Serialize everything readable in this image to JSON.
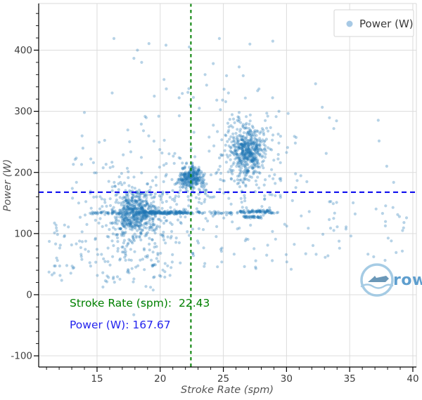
{
  "chart_data": {
    "type": "scatter",
    "title": "",
    "xlabel": "Stroke Rate (spm)",
    "ylabel": "Power (W)",
    "xlim": [
      10.38,
      40.28
    ],
    "ylim": [
      -118.3,
      476.3
    ],
    "x_ticks": [
      15,
      20,
      25,
      30,
      35,
      40
    ],
    "y_ticks": [
      -100,
      0,
      100,
      200,
      300,
      400
    ],
    "x_minor_step": 1,
    "y_minor_step": 20,
    "grid": true,
    "grid_color": "#dcdcdc",
    "legend": {
      "label": "Power (W)",
      "position": "upper right",
      "marker_color": "#a7c9e5"
    },
    "series_style": {
      "color": "#1f77b4",
      "alpha": 0.32,
      "radius": 2.1
    },
    "reference_lines": [
      {
        "orientation": "vertical",
        "value": 22.43,
        "color": "#008000",
        "dash": "4.5,4.5",
        "width": 2
      },
      {
        "orientation": "horizontal",
        "value": 167.67,
        "color": "#0000ee",
        "dash": "7,5",
        "width": 2
      }
    ],
    "annotations": [
      {
        "text": "Stroke Rate (spm):  22.43",
        "color": "#008000",
        "x": 12.83,
        "y": -19.5
      },
      {
        "text": "Power (W): 167.67",
        "color": "#2424ee",
        "x": 12.83,
        "y": -55
      }
    ],
    "seed": 42,
    "point_distribution": {
      "gaussian_clusters": [
        {
          "cx": 18.0,
          "cy": 135,
          "sx": 0.85,
          "sy": 16,
          "n": 430
        },
        {
          "cx": 18.1,
          "cy": 118,
          "sx": 2.0,
          "sy": 48,
          "n": 260
        },
        {
          "cx": 22.15,
          "cy": 191,
          "sx": 0.35,
          "sy": 9,
          "n": 130
        },
        {
          "cx": 22.85,
          "cy": 192,
          "sx": 0.3,
          "sy": 9,
          "n": 110
        },
        {
          "cx": 22.5,
          "cy": 182,
          "sx": 1.1,
          "sy": 25,
          "n": 70
        },
        {
          "cx": 26.9,
          "cy": 234,
          "sx": 0.65,
          "sy": 20,
          "n": 430
        },
        {
          "cx": 26.8,
          "cy": 230,
          "sx": 1.5,
          "sy": 42,
          "n": 140
        }
      ],
      "bands": [
        {
          "x1": 18.2,
          "x2": 22.2,
          "y": 134,
          "sy": 1.2,
          "n": 160
        },
        {
          "x1": 14.4,
          "x2": 18.2,
          "y": 134,
          "sy": 1.0,
          "n": 45
        },
        {
          "x1": 22.2,
          "x2": 26.2,
          "y": 134,
          "sy": 1.0,
          "n": 40
        },
        {
          "x1": 26.3,
          "x2": 28.7,
          "y": 136,
          "sy": 1.2,
          "n": 70
        },
        {
          "x1": 26.6,
          "x2": 28.1,
          "y": 127,
          "sy": 1.0,
          "n": 35
        },
        {
          "x1": 28.7,
          "x2": 29.5,
          "y": 134,
          "sy": 1.0,
          "n": 8
        }
      ],
      "uniform_fields": [
        {
          "x1": 11.5,
          "x2": 21.0,
          "y1": 20,
          "y2": 120,
          "n": 90
        },
        {
          "x1": 21.0,
          "x2": 33.0,
          "y1": 40,
          "y2": 165,
          "n": 70
        },
        {
          "x1": 33.0,
          "x2": 39.8,
          "y1": 55,
          "y2": 160,
          "n": 30
        },
        {
          "x1": 13.0,
          "x2": 21.5,
          "y1": 150,
          "y2": 260,
          "n": 45
        },
        {
          "x1": 23.0,
          "x2": 31.5,
          "y1": 150,
          "y2": 210,
          "n": 25
        },
        {
          "x1": 15.5,
          "x2": 30.0,
          "y1": 260,
          "y2": 340,
          "n": 30
        },
        {
          "x1": 16.0,
          "x2": 29.0,
          "y1": 340,
          "y2": 420,
          "n": 12
        },
        {
          "x1": 30.0,
          "x2": 38.5,
          "y1": 170,
          "y2": 310,
          "n": 12
        },
        {
          "x1": 11.0,
          "x2": 14.0,
          "y1": 20,
          "y2": 105,
          "n": 15
        }
      ],
      "outliers": [
        [
          18.2,
          400
        ],
        [
          27.1,
          410
        ],
        [
          32.3,
          345
        ],
        [
          24.2,
          378
        ],
        [
          20.3,
          352
        ],
        [
          16.2,
          330
        ],
        [
          14.0,
          298
        ],
        [
          37.6,
          133
        ],
        [
          38.8,
          131
        ],
        [
          36.9,
          62
        ],
        [
          38.3,
          88
        ],
        [
          39.3,
          118
        ],
        [
          11.2,
          37
        ],
        [
          11.8,
          60
        ],
        [
          12.4,
          95
        ],
        [
          30.7,
          248
        ],
        [
          33.4,
          152
        ],
        [
          35.1,
          96
        ],
        [
          34.2,
          76
        ],
        [
          31.8,
          136
        ],
        [
          29.4,
          300
        ],
        [
          28.9,
          322
        ],
        [
          25.4,
          330
        ],
        [
          23.1,
          305
        ],
        [
          21.5,
          322
        ]
      ]
    }
  },
  "watermark": {
    "text": "rowsa",
    "circle_color": "#9cc6e2",
    "boat_color": "#5b8db1",
    "wave_color": "#9cc6e2",
    "text_color": "#4d94c9"
  }
}
